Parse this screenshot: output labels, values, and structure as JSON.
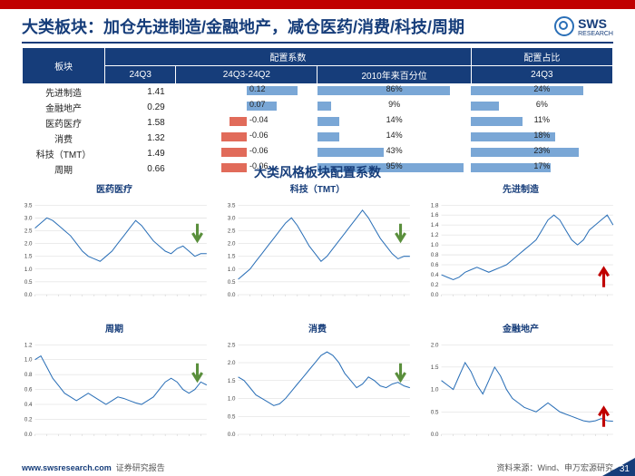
{
  "title": "大类板块：加仓先进制造/金融地产，减仓医药/消费/科技/周期",
  "logo": {
    "brand": "SWS",
    "sub": "RESEARCH"
  },
  "table": {
    "header_sector": "板块",
    "header_coef": "配置系数",
    "header_weight": "配置占比",
    "sub_headers": [
      "24Q3",
      "24Q3-24Q2",
      "2010年来百分位",
      "24Q3"
    ],
    "rows": [
      {
        "sector": "先进制造",
        "q3": "1.41",
        "delta": 0.12,
        "pct": 86,
        "weight": 24
      },
      {
        "sector": "金融地产",
        "q3": "0.29",
        "delta": 0.07,
        "pct": 9,
        "weight": 6
      },
      {
        "sector": "医药医疗",
        "q3": "1.58",
        "delta": -0.04,
        "pct": 14,
        "weight": 11
      },
      {
        "sector": "消费",
        "q3": "1.32",
        "delta": -0.06,
        "pct": 14,
        "weight": 18
      },
      {
        "sector": "科技（TMT）",
        "q3": "1.49",
        "delta": -0.06,
        "pct": 43,
        "weight": 23
      },
      {
        "sector": "周期",
        "q3": "0.66",
        "delta": -0.06,
        "pct": 95,
        "weight": 17
      }
    ],
    "bar_max": 0.15,
    "colors": {
      "pos": "#7aa7d6",
      "neg": "#e16b5a",
      "header_bg": "#163d7a"
    }
  },
  "charts_title": "大类风格板块配置系数",
  "charts": [
    {
      "title": "医药医疗",
      "ylim": [
        0,
        3.5
      ],
      "ystep": 0.5,
      "arrow": "down",
      "data": [
        2.6,
        2.8,
        3.0,
        2.9,
        2.7,
        2.5,
        2.3,
        2.0,
        1.7,
        1.5,
        1.4,
        1.3,
        1.5,
        1.7,
        2.0,
        2.3,
        2.6,
        2.9,
        2.7,
        2.4,
        2.1,
        1.9,
        1.7,
        1.6,
        1.8,
        1.9,
        1.7,
        1.5,
        1.6,
        1.6
      ]
    },
    {
      "title": "科技（TMT）",
      "ylim": [
        0,
        3.5
      ],
      "ystep": 0.5,
      "arrow": "down",
      "data": [
        0.6,
        0.8,
        1.0,
        1.3,
        1.6,
        1.9,
        2.2,
        2.5,
        2.8,
        3.0,
        2.7,
        2.3,
        1.9,
        1.6,
        1.3,
        1.5,
        1.8,
        2.1,
        2.4,
        2.7,
        3.0,
        3.3,
        3.0,
        2.6,
        2.2,
        1.9,
        1.6,
        1.4,
        1.5,
        1.5
      ]
    },
    {
      "title": "先进制造",
      "ylim": [
        0,
        1.8
      ],
      "ystep": 0.2,
      "arrow": "up",
      "data": [
        0.4,
        0.35,
        0.3,
        0.35,
        0.45,
        0.5,
        0.55,
        0.5,
        0.45,
        0.5,
        0.55,
        0.6,
        0.7,
        0.8,
        0.9,
        1.0,
        1.1,
        1.3,
        1.5,
        1.6,
        1.5,
        1.3,
        1.1,
        1.0,
        1.1,
        1.3,
        1.4,
        1.5,
        1.6,
        1.4
      ]
    },
    {
      "title": "周期",
      "ylim": [
        0,
        1.2
      ],
      "ystep": 0.2,
      "arrow": "down",
      "data": [
        1.0,
        1.05,
        0.9,
        0.75,
        0.65,
        0.55,
        0.5,
        0.45,
        0.5,
        0.55,
        0.5,
        0.45,
        0.4,
        0.45,
        0.5,
        0.48,
        0.45,
        0.42,
        0.4,
        0.45,
        0.5,
        0.6,
        0.7,
        0.75,
        0.7,
        0.6,
        0.55,
        0.6,
        0.7,
        0.66
      ]
    },
    {
      "title": "消费",
      "ylim": [
        0,
        2.5
      ],
      "ystep": 0.5,
      "arrow": "down",
      "data": [
        1.6,
        1.5,
        1.3,
        1.1,
        1.0,
        0.9,
        0.8,
        0.85,
        1.0,
        1.2,
        1.4,
        1.6,
        1.8,
        2.0,
        2.2,
        2.3,
        2.2,
        2.0,
        1.7,
        1.5,
        1.3,
        1.4,
        1.6,
        1.5,
        1.35,
        1.3,
        1.4,
        1.45,
        1.35,
        1.3
      ]
    },
    {
      "title": "金融地产",
      "ylim": [
        0,
        2.0
      ],
      "ystep": 0.5,
      "arrow": "up",
      "data": [
        1.2,
        1.1,
        1.0,
        1.3,
        1.6,
        1.4,
        1.1,
        0.9,
        1.2,
        1.5,
        1.3,
        1.0,
        0.8,
        0.7,
        0.6,
        0.55,
        0.5,
        0.6,
        0.7,
        0.6,
        0.5,
        0.45,
        0.4,
        0.35,
        0.3,
        0.28,
        0.3,
        0.35,
        0.3,
        0.29
      ]
    }
  ],
  "footer": {
    "url": "www.swsresearch.com",
    "report": "证券研究报告",
    "source": "资料来源：Wind、申万宏源研究",
    "page": "31"
  }
}
